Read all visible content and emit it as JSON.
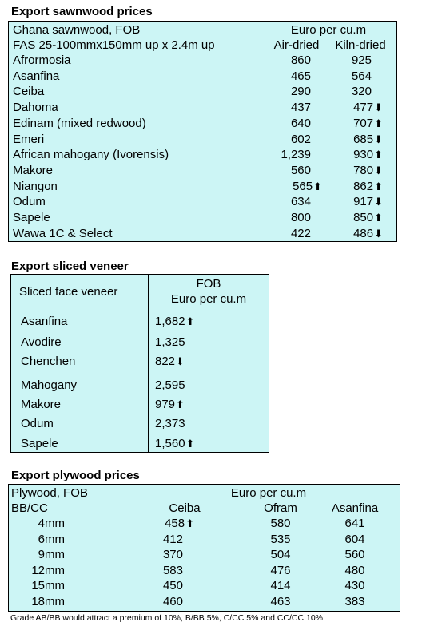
{
  "sawnwood": {
    "title": "Export sawnwood prices",
    "header_left_1": "Ghana sawnwood, FOB",
    "header_left_2": "FAS 25-100mmx150mm up x 2.4m up",
    "header_unit": "Euro per cu.m",
    "col_air": "Air-dried",
    "col_kiln": "Kiln-dried",
    "rows": [
      {
        "name": "Afrormosia",
        "air": "860",
        "air_arrow": "",
        "kiln": "925",
        "kiln_arrow": ""
      },
      {
        "name": "Asanfina",
        "air": "465",
        "air_arrow": "",
        "kiln": "564",
        "kiln_arrow": ""
      },
      {
        "name": "Ceiba",
        "air": "290",
        "air_arrow": "",
        "kiln": "320",
        "kiln_arrow": ""
      },
      {
        "name": "Dahoma",
        "air": "437",
        "air_arrow": "",
        "kiln": "477",
        "kiln_arrow": "⬇"
      },
      {
        "name": "Edinam (mixed redwood)",
        "air": "640",
        "air_arrow": "",
        "kiln": "707",
        "kiln_arrow": "⬆"
      },
      {
        "name": "Emeri",
        "air": "602",
        "air_arrow": "",
        "kiln": "685",
        "kiln_arrow": "⬇"
      },
      {
        "name": "African mahogany (Ivorensis)",
        "air": "1,239",
        "air_arrow": "",
        "kiln": "930",
        "kiln_arrow": "⬆"
      },
      {
        "name": "Makore",
        "air": "560",
        "air_arrow": "",
        "kiln": "780",
        "kiln_arrow": "⬇"
      },
      {
        "name": "Niangon",
        "air": "565",
        "air_arrow": "⬆",
        "kiln": "862",
        "kiln_arrow": "⬆"
      },
      {
        "name": "Odum",
        "air": "634",
        "air_arrow": "",
        "kiln": "917",
        "kiln_arrow": "⬇"
      },
      {
        "name": "Sapele",
        "air": "800",
        "air_arrow": "",
        "kiln": "850",
        "kiln_arrow": "⬆"
      },
      {
        "name": "Wawa 1C & Select",
        "air": "422",
        "air_arrow": "",
        "kiln": "486",
        "kiln_arrow": "⬇"
      }
    ]
  },
  "veneer": {
    "title": "Export sliced veneer",
    "header_left": "Sliced face veneer",
    "header_right_1": "FOB",
    "header_right_2": "Euro per cu.m",
    "rows": [
      {
        "name": "Asanfina",
        "value": "1,682",
        "arrow": "⬆"
      },
      {
        "name": "Avodire",
        "value": "1,325",
        "arrow": ""
      },
      {
        "name": "Chenchen",
        "value": "822",
        "arrow": "⬇"
      },
      {
        "name": "Mahogany",
        "value": "2,595",
        "arrow": ""
      },
      {
        "name": "Makore",
        "value": "979",
        "arrow": "⬆"
      },
      {
        "name": "Odum",
        "value": "2,373",
        "arrow": ""
      },
      {
        "name": "Sapele",
        "value": "1,560",
        "arrow": "⬆"
      }
    ]
  },
  "plywood": {
    "title": "Export plywood prices",
    "header_left_1": "Plywood, FOB",
    "header_left_2": "BB/CC",
    "header_unit": "Euro per cu.m",
    "col_ceiba": "Ceiba",
    "col_ofram": "Ofram",
    "col_asanfina": "Asanfina",
    "rows": [
      {
        "size": "4mm",
        "ceiba": "458",
        "ceiba_arrow": "⬆",
        "ofram": "580",
        "asanfina": "641"
      },
      {
        "size": "6mm",
        "ceiba": "412",
        "ceiba_arrow": "",
        "ofram": "535",
        "asanfina": "604"
      },
      {
        "size": "9mm",
        "ceiba": "370",
        "ceiba_arrow": "",
        "ofram": "504",
        "asanfina": "560"
      },
      {
        "size": "12mm",
        "ceiba": "583",
        "ceiba_arrow": "",
        "ofram": "476",
        "asanfina": "480"
      },
      {
        "size": "15mm",
        "ceiba": "450",
        "ceiba_arrow": "",
        "ofram": "414",
        "asanfina": "430"
      },
      {
        "size": "18mm",
        "ceiba": "460",
        "ceiba_arrow": "",
        "ofram": "463",
        "asanfina": "383"
      }
    ],
    "note": "Grade AB/BB would attract a premium of 10%, B/BB 5%, C/CC 5% and CC/CC 10%."
  }
}
